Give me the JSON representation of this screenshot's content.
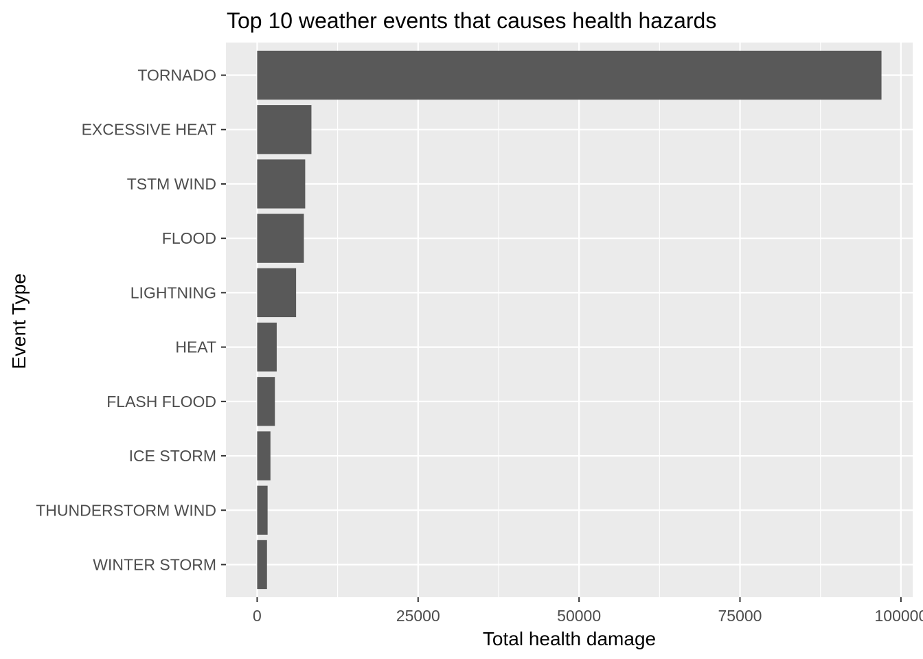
{
  "chart_data": {
    "type": "bar",
    "orientation": "horizontal",
    "title": "Top 10 weather events that causes health hazards",
    "xlabel": "Total health damage",
    "ylabel": "Event Type",
    "categories": [
      "TORNADO",
      "EXCESSIVE HEAT",
      "TSTM WIND",
      "FLOOD",
      "LIGHTNING",
      "HEAT",
      "FLASH FLOOD",
      "ICE STORM",
      "THUNDERSTORM WIND",
      "WINTER STORM"
    ],
    "values": [
      96979,
      8428,
      7461,
      7259,
      6046,
      3037,
      2755,
      2064,
      1621,
      1527
    ],
    "xlim": [
      -4849,
      101828
    ],
    "x_ticks": [
      0,
      25000,
      50000,
      75000,
      100000
    ],
    "x_tick_labels": [
      "0",
      "25000",
      "50000",
      "75000",
      "100000"
    ],
    "grid": true,
    "colors": {
      "panel": "#ebebeb",
      "bar": "#595959",
      "grid": "#ffffff",
      "tick": "#333333"
    }
  }
}
